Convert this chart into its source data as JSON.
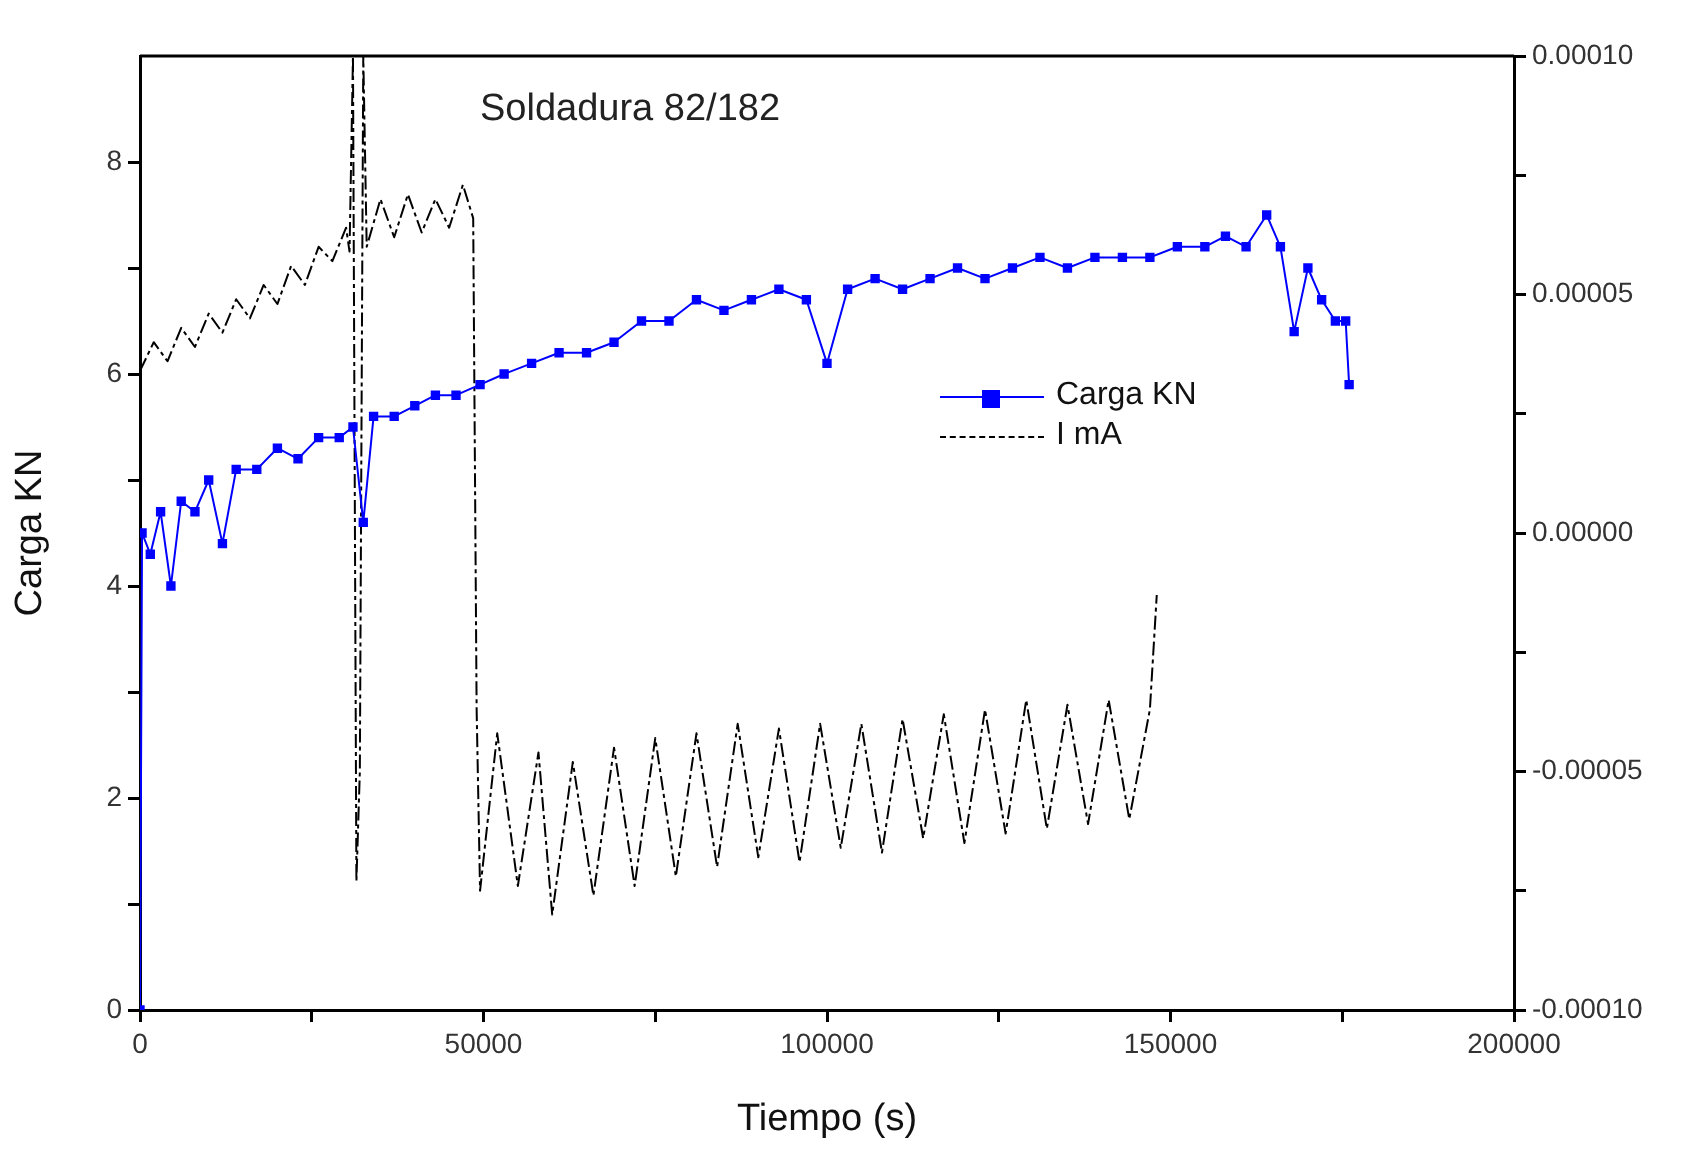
{
  "chart_data": {
    "type": "line",
    "title": "Soldadura 82/182",
    "xlabel": "Tiempo (s)",
    "ylabel": "Carga KN",
    "xlim": [
      0,
      200000
    ],
    "xticks": [
      0,
      {
        "value": 25000,
        "label": null
      },
      50000,
      {
        "value": 75000,
        "label": null
      },
      100000,
      {
        "value": 125000,
        "label": null
      },
      150000,
      {
        "value": 175000,
        "label": null
      },
      200000
    ],
    "ylim": [
      0,
      9
    ],
    "yticks": [
      0,
      {
        "value": 1,
        "label": null
      },
      2,
      {
        "value": 3,
        "label": null
      },
      4,
      {
        "value": 5,
        "label": null
      },
      6,
      {
        "value": 7,
        "label": null
      },
      8
    ],
    "y2lim": [
      -0.0001,
      0.0001
    ],
    "y2ticks": [
      {
        "value": -0.0001,
        "label": "-0.00010"
      },
      {
        "value": -7.5e-05,
        "label": null
      },
      {
        "value": -5e-05,
        "label": "-0.00005"
      },
      {
        "value": -2.5e-05,
        "label": null
      },
      {
        "value": 0,
        "label": "0.00000"
      },
      {
        "value": 2.5e-05,
        "label": null
      },
      {
        "value": 5e-05,
        "label": "0.00005"
      },
      {
        "value": 7.5e-05,
        "label": null
      },
      {
        "value": 0.0001,
        "label": "0.00010"
      }
    ],
    "grid": false,
    "legend": "right",
    "series": [
      {
        "name": "Carga KN",
        "color": "#0000ff",
        "marker": "square",
        "line_style": "solid",
        "x": [
          0,
          300,
          1500,
          3000,
          4500,
          6000,
          8000,
          10000,
          12000,
          14000,
          17000,
          20000,
          23000,
          26000,
          29000,
          31000,
          32500,
          34000,
          37000,
          40000,
          43000,
          46000,
          49500,
          53000,
          57000,
          61000,
          65000,
          69000,
          73000,
          77000,
          81000,
          85000,
          89000,
          93000,
          97000,
          100000,
          103000,
          107000,
          111000,
          115000,
          119000,
          123000,
          127000,
          131000,
          135000,
          139000,
          143000,
          147000,
          151000,
          155000,
          158000,
          161000,
          164000,
          166000,
          168000,
          170000,
          172000,
          174000,
          175500,
          176000
        ],
        "values": [
          0,
          4.5,
          4.3,
          4.7,
          4.0,
          4.8,
          4.7,
          5.0,
          4.4,
          5.1,
          5.1,
          5.3,
          5.2,
          5.4,
          5.4,
          5.5,
          4.6,
          5.6,
          5.6,
          5.7,
          5.8,
          5.8,
          5.9,
          6.0,
          6.1,
          6.2,
          6.2,
          6.3,
          6.5,
          6.5,
          6.7,
          6.6,
          6.7,
          6.8,
          6.7,
          6.1,
          6.8,
          6.9,
          6.8,
          6.9,
          7.0,
          6.9,
          7.0,
          7.1,
          7.0,
          7.1,
          7.1,
          7.1,
          7.2,
          7.2,
          7.3,
          7.2,
          7.5,
          7.2,
          6.4,
          7.0,
          6.7,
          6.5,
          6.5,
          5.9
        ]
      },
      {
        "name": "I mA",
        "axis": "y2",
        "color": "#000000",
        "marker": "none",
        "line_style": "dashed",
        "x": [
          0,
          2000,
          4000,
          6000,
          8000,
          10000,
          12000,
          14000,
          16000,
          18000,
          20000,
          22000,
          24000,
          26000,
          28000,
          30000,
          30500,
          31000,
          31500,
          32000,
          32500,
          33000,
          35000,
          37000,
          39000,
          41000,
          43000,
          45000,
          47000,
          48500,
          49000,
          49500,
          52000,
          55000,
          58000,
          60000,
          63000,
          66000,
          69000,
          72000,
          75000,
          78000,
          81000,
          84000,
          87000,
          90000,
          93000,
          96000,
          99000,
          102000,
          105000,
          108000,
          111000,
          114000,
          117000,
          120000,
          123000,
          126000,
          129000,
          132000,
          135000,
          138000,
          141000,
          144000,
          147000,
          148000
        ],
        "values": [
          3.4e-05,
          4e-05,
          3.6e-05,
          4.3e-05,
          3.9e-05,
          4.6e-05,
          4.2e-05,
          4.9e-05,
          4.5e-05,
          5.2e-05,
          4.8e-05,
          5.6e-05,
          5.2e-05,
          6e-05,
          5.7e-05,
          6.4e-05,
          5.9e-05,
          0.0001,
          -7.3e-05,
          -5e-05,
          0.0001,
          6e-05,
          7e-05,
          6.2e-05,
          7.1e-05,
          6.3e-05,
          7e-05,
          6.4e-05,
          7.3e-05,
          6.6e-05,
          -3.7e-05,
          -7.5e-05,
          -4.2e-05,
          -7.4e-05,
          -4.6e-05,
          -8e-05,
          -4.8e-05,
          -7.6e-05,
          -4.5e-05,
          -7.4e-05,
          -4.3e-05,
          -7.2e-05,
          -4.2e-05,
          -7e-05,
          -4e-05,
          -6.8e-05,
          -4.1e-05,
          -6.9e-05,
          -4e-05,
          -6.6e-05,
          -4e-05,
          -6.7e-05,
          -3.9e-05,
          -6.4e-05,
          -3.8e-05,
          -6.5e-05,
          -3.7e-05,
          -6.3e-05,
          -3.5e-05,
          -6.2e-05,
          -3.6e-05,
          -6.1e-05,
          -3.5e-05,
          -6e-05,
          -3.7e-05,
          -1.3e-05
        ]
      }
    ]
  }
}
